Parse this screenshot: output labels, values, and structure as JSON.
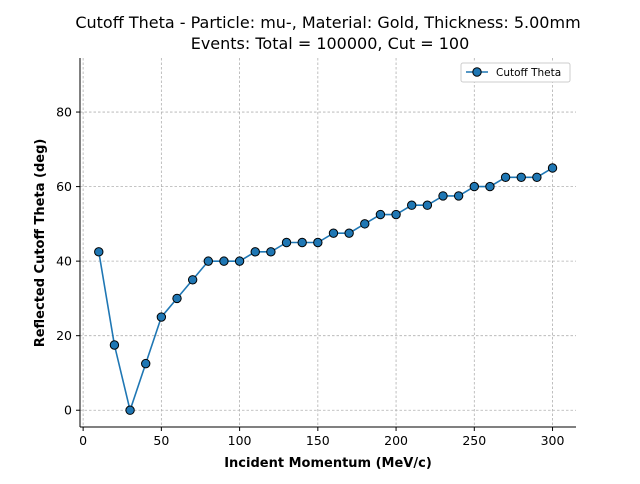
{
  "chart_data": {
    "type": "line",
    "title": "Cutoff Theta - Particle: mu-, Material: Gold, Thickness: 5.00mm",
    "subtitle": "Events: Total = 100000, Cut = 100",
    "xlabel": "Incident Momentum (MeV/c)",
    "ylabel": "Reflected Cutoff Theta (deg)",
    "xlim": [
      -2,
      315
    ],
    "ylim": [
      -4.5,
      94.5
    ],
    "xticks": [
      0,
      50,
      100,
      150,
      200,
      250,
      300
    ],
    "yticks": [
      0,
      20,
      40,
      60,
      80
    ],
    "grid": true,
    "legend_position": "top-right",
    "series": [
      {
        "name": "Cutoff Theta",
        "color": "#1f77b4",
        "x": [
          10,
          20,
          30,
          40,
          50,
          60,
          70,
          80,
          90,
          100,
          110,
          120,
          130,
          140,
          150,
          160,
          170,
          180,
          190,
          200,
          210,
          220,
          230,
          240,
          250,
          260,
          270,
          280,
          290,
          300
        ],
        "y": [
          42.5,
          17.5,
          0,
          12.5,
          25,
          30,
          35,
          40,
          40,
          40,
          42.5,
          42.5,
          45,
          45,
          45,
          47.5,
          47.5,
          50,
          52.5,
          52.5,
          55,
          55,
          57.5,
          57.5,
          60,
          60,
          62.5,
          62.5,
          62.5,
          65
        ]
      }
    ]
  }
}
